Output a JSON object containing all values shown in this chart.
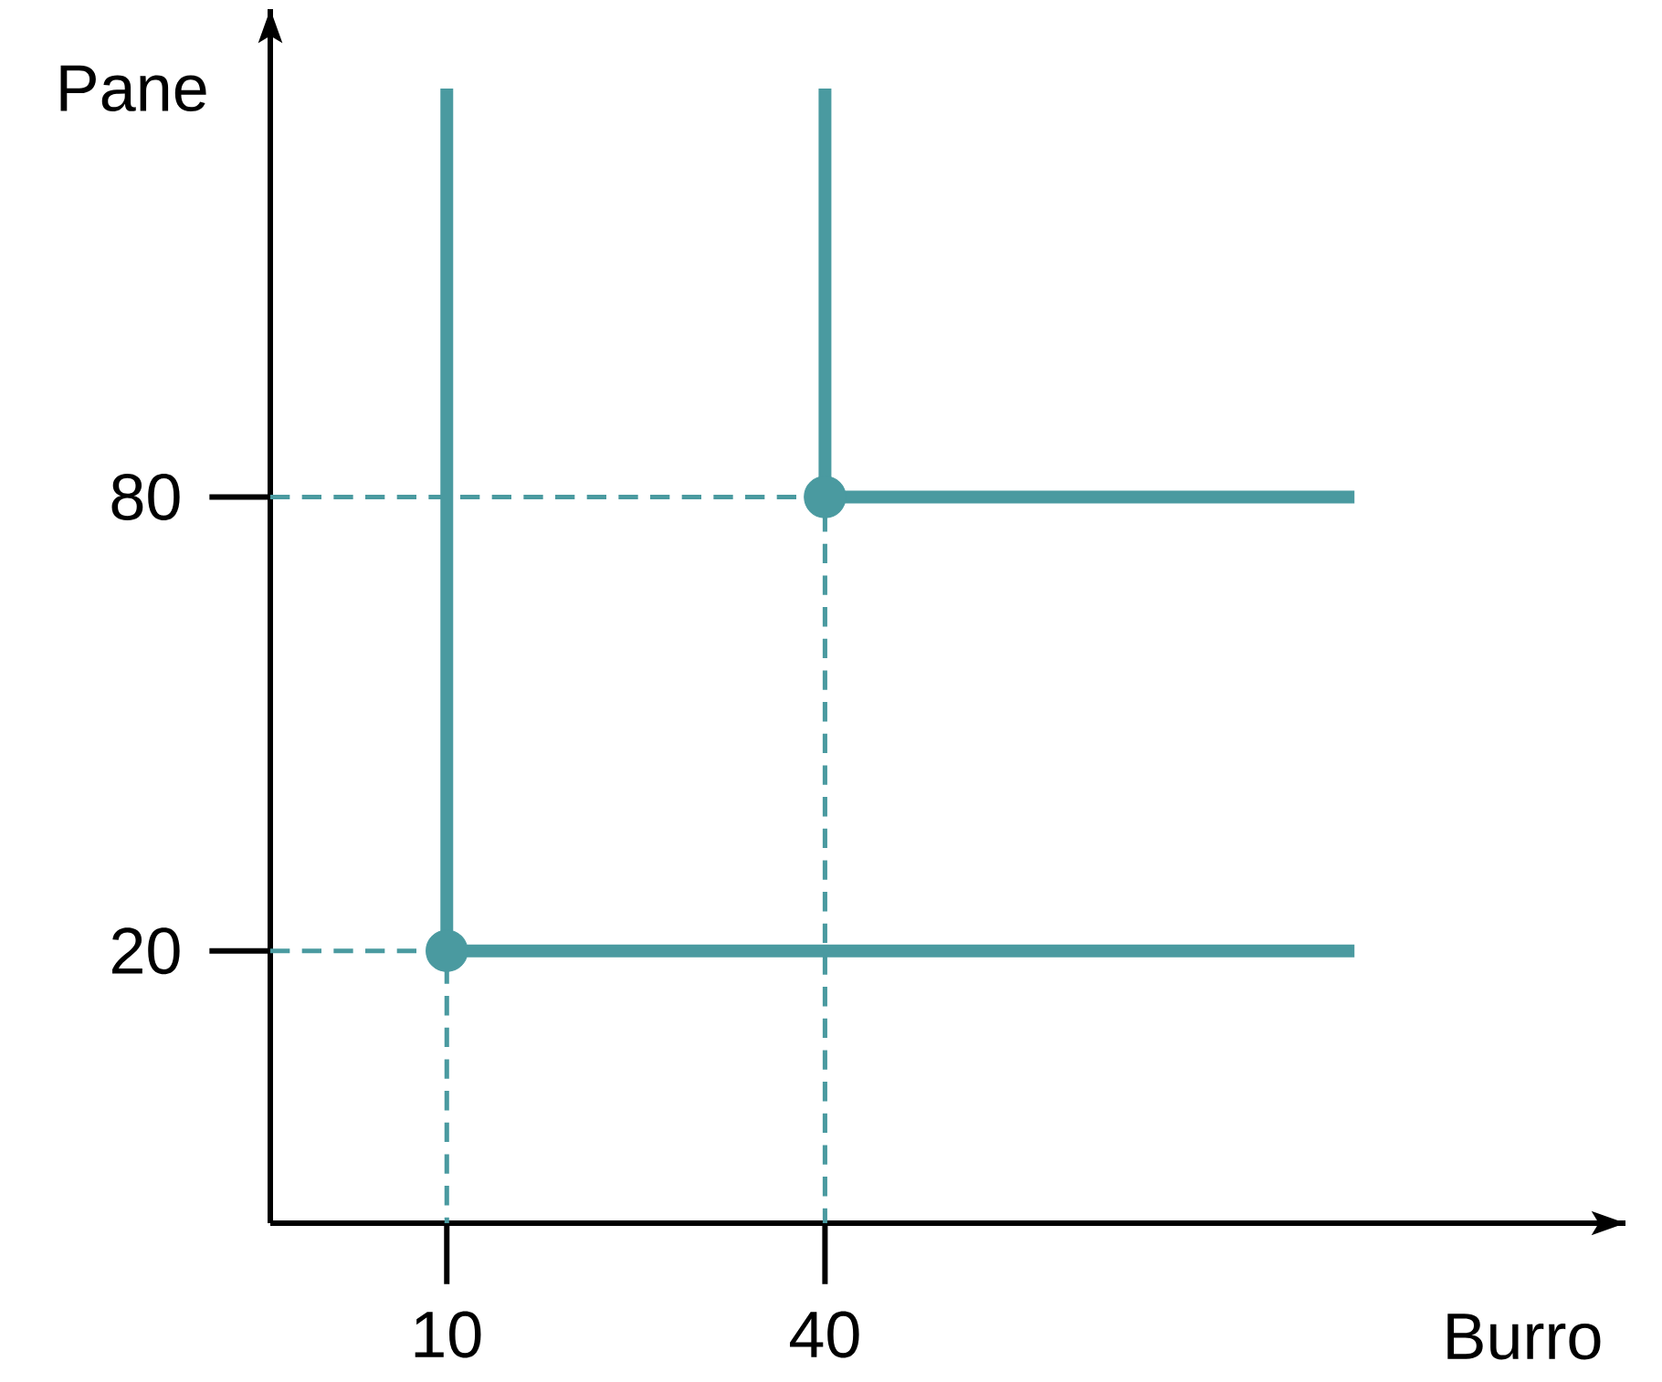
{
  "chart_data": {
    "type": "line",
    "xlabel": "Burro",
    "ylabel": "Pane",
    "xlim": [
      -4,
      103.5
    ],
    "ylim": [
      -16,
      144.5
    ],
    "xticks": [
      10,
      40
    ],
    "yticks": [
      20,
      80
    ],
    "grid": false,
    "series": [
      {
        "color": "#4a9aa0",
        "x": [
          -4,
          10,
          10
        ],
        "values": [
          20,
          20,
          -16
        ],
        "line_style": "dashed"
      },
      {
        "color": "#4a9aa0",
        "x": [
          -4,
          40,
          40
        ],
        "values": [
          80,
          80,
          -16
        ],
        "line_style": "dashed"
      },
      {
        "color": "#4a9aa0",
        "x": [
          10,
          10,
          82
        ],
        "values": [
          134,
          20,
          20
        ],
        "line_style": "solid"
      },
      {
        "color": "#4a9aa0",
        "x": [
          40,
          40,
          82
        ],
        "values": [
          134,
          80,
          80
        ],
        "line_style": "solid"
      },
      {
        "type": "scatter",
        "color": "#4a9aa0",
        "x": [
          10,
          40
        ],
        "values": [
          20,
          80
        ],
        "marker": "circle"
      }
    ]
  }
}
